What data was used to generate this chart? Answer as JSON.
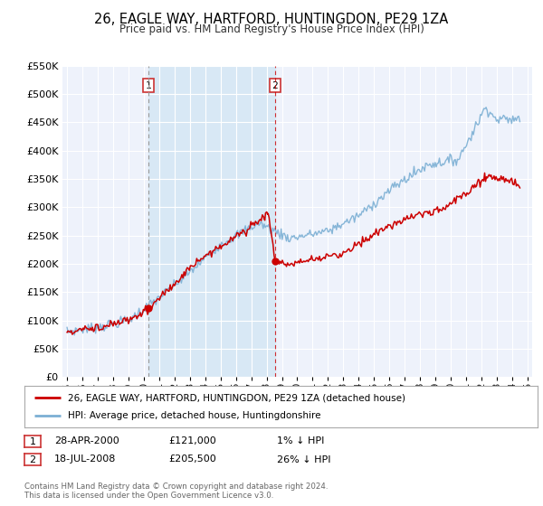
{
  "title": "26, EAGLE WAY, HARTFORD, HUNTINGDON, PE29 1ZA",
  "subtitle": "Price paid vs. HM Land Registry's House Price Index (HPI)",
  "property_color": "#cc0000",
  "hpi_color": "#7bafd4",
  "background_color": "#ffffff",
  "plot_bg_color": "#eef2fb",
  "grid_color": "#ffffff",
  "shade_color": "#d8e8f5",
  "marker1_date_num": 2000.32,
  "marker1_value": 121000,
  "marker2_date_num": 2008.55,
  "marker2_value": 205500,
  "marker1_date_str": "28-APR-2000",
  "marker1_price_str": "£121,000",
  "marker1_hpi_str": "1% ↓ HPI",
  "marker2_date_str": "18-JUL-2008",
  "marker2_price_str": "£205,500",
  "marker2_hpi_str": "26% ↓ HPI",
  "legend_property_label": "26, EAGLE WAY, HARTFORD, HUNTINGDON, PE29 1ZA (detached house)",
  "legend_hpi_label": "HPI: Average price, detached house, Huntingdonshire",
  "footer_line1": "Contains HM Land Registry data © Crown copyright and database right 2024.",
  "footer_line2": "This data is licensed under the Open Government Licence v3.0.",
  "xmin": 1994.7,
  "xmax": 2025.3,
  "ylim": [
    0,
    550000
  ],
  "yticks": [
    0,
    50000,
    100000,
    150000,
    200000,
    250000,
    300000,
    350000,
    400000,
    450000,
    500000,
    550000
  ]
}
